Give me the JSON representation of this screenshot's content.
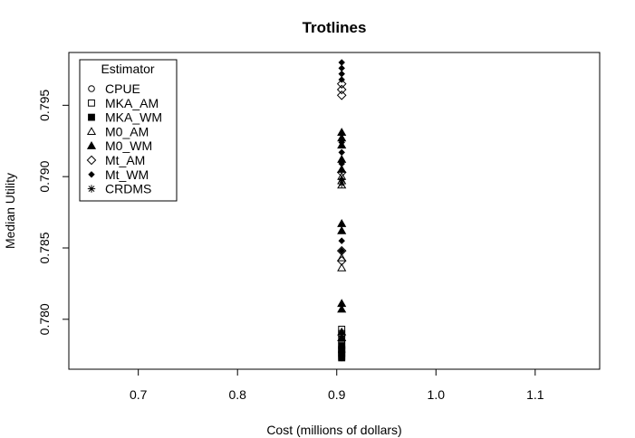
{
  "chart_data": {
    "type": "scatter",
    "title": "Trotlines",
    "xlabel": "Cost (millions of dollars)",
    "ylabel": "Median Utility",
    "xlim": [
      0.63,
      1.165
    ],
    "ylim": [
      0.7765,
      0.7987
    ],
    "xticks": [
      0.7,
      0.8,
      0.9,
      1.0,
      1.1
    ],
    "xtick_labels": [
      "0.7",
      "0.8",
      "0.9",
      "1.0",
      "1.1"
    ],
    "yticks": [
      0.78,
      0.785,
      0.79,
      0.795
    ],
    "ytick_labels": [
      "0.780",
      "0.785",
      "0.790",
      "0.795"
    ],
    "grid": false,
    "legend": {
      "title": "Estimator",
      "placement": "top-left",
      "entries": [
        {
          "name": "CPUE",
          "symbol": "open-circle"
        },
        {
          "name": "MKA_AM",
          "symbol": "open-square"
        },
        {
          "name": "MKA_WM",
          "symbol": "filled-square"
        },
        {
          "name": "M0_AM",
          "symbol": "open-triangle"
        },
        {
          "name": "M0_WM",
          "symbol": "filled-triangle"
        },
        {
          "name": "Mt_AM",
          "symbol": "open-diamond"
        },
        {
          "name": "Mt_WM",
          "symbol": "filled-diamond"
        },
        {
          "name": "CRDMS",
          "symbol": "asterisk"
        }
      ]
    },
    "series": [
      {
        "name": "CPUE",
        "symbol": "open-circle",
        "points": [
          {
            "x": 0.905,
            "y": 0.7773
          },
          {
            "x": 0.905,
            "y": 0.7776
          },
          {
            "x": 0.905,
            "y": 0.7779
          }
        ]
      },
      {
        "name": "MKA_AM",
        "symbol": "open-square",
        "points": [
          {
            "x": 0.905,
            "y": 0.7793
          },
          {
            "x": 0.905,
            "y": 0.779
          },
          {
            "x": 0.905,
            "y": 0.7786
          },
          {
            "x": 0.905,
            "y": 0.7782
          },
          {
            "x": 0.905,
            "y": 0.7779
          }
        ]
      },
      {
        "name": "MKA_WM",
        "symbol": "filled-square",
        "points": [
          {
            "x": 0.905,
            "y": 0.7781
          },
          {
            "x": 0.905,
            "y": 0.7778
          },
          {
            "x": 0.905,
            "y": 0.7776
          },
          {
            "x": 0.905,
            "y": 0.7774
          },
          {
            "x": 0.905,
            "y": 0.7773
          }
        ]
      },
      {
        "name": "M0_AM",
        "symbol": "open-triangle",
        "points": [
          {
            "x": 0.905,
            "y": 0.79
          },
          {
            "x": 0.905,
            "y": 0.7897
          },
          {
            "x": 0.905,
            "y": 0.7894
          },
          {
            "x": 0.905,
            "y": 0.7843
          },
          {
            "x": 0.905,
            "y": 0.7836
          }
        ]
      },
      {
        "name": "M0_WM",
        "symbol": "filled-triangle",
        "points": [
          {
            "x": 0.905,
            "y": 0.7931
          },
          {
            "x": 0.905,
            "y": 0.7927
          },
          {
            "x": 0.905,
            "y": 0.7922
          },
          {
            "x": 0.905,
            "y": 0.7912
          },
          {
            "x": 0.905,
            "y": 0.7905
          },
          {
            "x": 0.905,
            "y": 0.7867
          },
          {
            "x": 0.905,
            "y": 0.7862
          },
          {
            "x": 0.905,
            "y": 0.7811
          },
          {
            "x": 0.905,
            "y": 0.7807
          },
          {
            "x": 0.905,
            "y": 0.7791
          },
          {
            "x": 0.905,
            "y": 0.7787
          }
        ]
      },
      {
        "name": "Mt_AM",
        "symbol": "open-diamond",
        "points": [
          {
            "x": 0.905,
            "y": 0.7965
          },
          {
            "x": 0.905,
            "y": 0.7961
          },
          {
            "x": 0.905,
            "y": 0.7957
          },
          {
            "x": 0.905,
            "y": 0.7903
          },
          {
            "x": 0.905,
            "y": 0.7848
          },
          {
            "x": 0.905,
            "y": 0.7841
          }
        ]
      },
      {
        "name": "Mt_WM",
        "symbol": "filled-diamond",
        "points": [
          {
            "x": 0.905,
            "y": 0.798
          },
          {
            "x": 0.905,
            "y": 0.7976
          },
          {
            "x": 0.905,
            "y": 0.7972
          },
          {
            "x": 0.905,
            "y": 0.7968
          },
          {
            "x": 0.905,
            "y": 0.7924
          },
          {
            "x": 0.905,
            "y": 0.7917
          },
          {
            "x": 0.905,
            "y": 0.7909
          },
          {
            "x": 0.905,
            "y": 0.7898
          },
          {
            "x": 0.905,
            "y": 0.7855
          },
          {
            "x": 0.905,
            "y": 0.7848
          }
        ]
      },
      {
        "name": "CRDMS",
        "symbol": "asterisk",
        "points": [
          {
            "x": 0.905,
            "y": 0.7895
          },
          {
            "x": 0.905,
            "y": 0.7777
          }
        ]
      }
    ]
  }
}
